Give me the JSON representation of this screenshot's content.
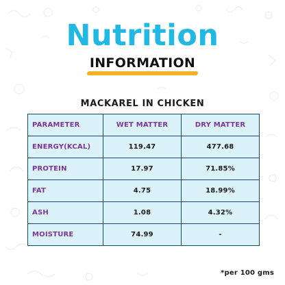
{
  "header": {
    "title": "Nutrition",
    "subtitle": "INFORMATION"
  },
  "section_title": "MACKAREL IN CHICKEN",
  "table": {
    "columns": [
      "PARAMETER",
      "WET MATTER",
      "DRY MATTER"
    ],
    "rows": [
      [
        "ENERGY(KCAL)",
        "119.47",
        "477.68"
      ],
      [
        "PROTEIN",
        "17.97",
        "71.85%"
      ],
      [
        "FAT",
        "4.75",
        "18.99%"
      ],
      [
        "ASH",
        "1.08",
        "4.32%"
      ],
      [
        "MOISTURE",
        "74.99",
        "-"
      ]
    ]
  },
  "footnote": "*per 100 gms",
  "colors": {
    "title": "#22b8e4",
    "underline": "#f3b328",
    "table_fill": "#dcf2fa",
    "header_text": "#7a3796",
    "border": "#0f4a60"
  }
}
